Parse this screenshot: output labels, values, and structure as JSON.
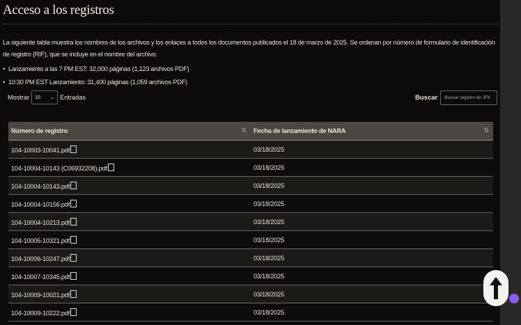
{
  "title": "Acceso a los registros",
  "intro": "La siguiente tabla muestra los nombres de los archivos y los enlaces a todos los documentos publicados el 18 de marzo de 2025. Se ordenan por número de formulario de identificación de registro (RIF), que se incluye en el nombre del archivo.",
  "releases": [
    "Lanzamiento a las 7 PM EST: 32,000 páginas (1,123 archivos PDF)",
    "10:30 PM EST Lanzamiento: 31,400 páginas (1,059 archivos PDF)"
  ],
  "length": {
    "show": "Mostrar",
    "value": "10",
    "entries": "Entradas"
  },
  "search": {
    "label": "Buscar",
    "placeholder": "Buscar registro de JFK"
  },
  "table": {
    "headers": [
      "Número de registro",
      "Fecha de lanzamiento de NARA"
    ],
    "rows": [
      [
        "104-10003-10041.pdf",
        "03/18/2025"
      ],
      [
        "104-10004-10143 (C06932208).pdf",
        "03/18/2025"
      ],
      [
        "104-10004-10143.pdf",
        "03/18/2025"
      ],
      [
        "104-10004-10156.pdf",
        "03/18/2025"
      ],
      [
        "104-10004-10213.pdf",
        "03/18/2025"
      ],
      [
        "104-10005-10321.pdf",
        "03/18/2025"
      ],
      [
        "104-10006-10247.pdf",
        "03/18/2025"
      ],
      [
        "104-10007-10345.pdf",
        "03/18/2025"
      ],
      [
        "104-10009-10021.pdf",
        "03/18/2025"
      ],
      [
        "104-10009-10222.pdf",
        "03/18/2025"
      ]
    ]
  },
  "icons": {
    "pdf": "pdf-file-icon",
    "sort": "sort-arrows-icon",
    "scroll_top": "arrow-up-icon",
    "extension": "brain-icon"
  }
}
